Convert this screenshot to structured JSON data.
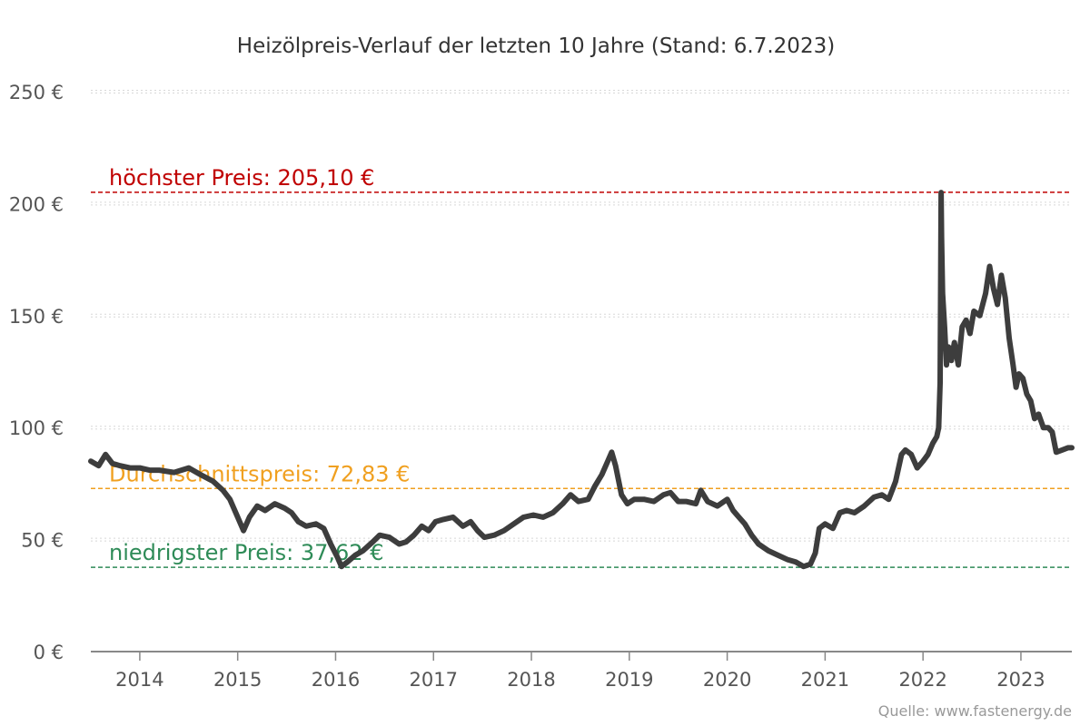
{
  "chart_data": {
    "type": "line",
    "title": "Heizölpreis-Verlauf der letzten 10 Jahre (Stand: 6.7.2023)",
    "credit": "Quelle: www.fastenergy.de",
    "ylim": [
      0,
      250
    ],
    "xlim": [
      2013.5,
      2023.52
    ],
    "y_ticks": [
      {
        "value": 0,
        "label": "0 €"
      },
      {
        "value": 50,
        "label": "50 €"
      },
      {
        "value": 100,
        "label": "100 €"
      },
      {
        "value": 150,
        "label": "150 €"
      },
      {
        "value": 200,
        "label": "200 €"
      },
      {
        "value": 250,
        "label": "250 €"
      }
    ],
    "x_ticks": [
      {
        "value": 2014,
        "label": "2014"
      },
      {
        "value": 2015,
        "label": "2015"
      },
      {
        "value": 2016,
        "label": "2016"
      },
      {
        "value": 2017,
        "label": "2017"
      },
      {
        "value": 2018,
        "label": "2018"
      },
      {
        "value": 2019,
        "label": "2019"
      },
      {
        "value": 2020,
        "label": "2020"
      },
      {
        "value": 2021,
        "label": "2021"
      },
      {
        "value": 2022,
        "label": "2022"
      },
      {
        "value": 2023,
        "label": "2023"
      }
    ],
    "reference_lines": [
      {
        "name": "max",
        "value": 205.1,
        "label": "höchster Preis: 205,10 €",
        "color": "#c00000"
      },
      {
        "name": "avg",
        "value": 72.83,
        "label": "Durchschnittspreis: 72,83 €",
        "color": "#f0a020"
      },
      {
        "name": "min",
        "value": 37.62,
        "label": "niedrigster Preis: 37,62 €",
        "color": "#2e8b57"
      }
    ],
    "series": [
      {
        "name": "Heizölpreis",
        "color": "#3d3d3d",
        "points": [
          [
            2013.5,
            85
          ],
          [
            2013.58,
            83
          ],
          [
            2013.65,
            88
          ],
          [
            2013.72,
            84
          ],
          [
            2013.8,
            83
          ],
          [
            2013.9,
            82
          ],
          [
            2014.0,
            82
          ],
          [
            2014.1,
            81
          ],
          [
            2014.2,
            81
          ],
          [
            2014.35,
            80
          ],
          [
            2014.5,
            82
          ],
          [
            2014.62,
            79
          ],
          [
            2014.75,
            76
          ],
          [
            2014.85,
            72
          ],
          [
            2014.92,
            68
          ],
          [
            2015.0,
            60
          ],
          [
            2015.06,
            54
          ],
          [
            2015.12,
            60
          ],
          [
            2015.2,
            65
          ],
          [
            2015.28,
            63
          ],
          [
            2015.38,
            66
          ],
          [
            2015.48,
            64
          ],
          [
            2015.55,
            62
          ],
          [
            2015.62,
            58
          ],
          [
            2015.7,
            56
          ],
          [
            2015.8,
            57
          ],
          [
            2015.88,
            55
          ],
          [
            2015.95,
            48
          ],
          [
            2016.02,
            42
          ],
          [
            2016.06,
            38
          ],
          [
            2016.12,
            40
          ],
          [
            2016.2,
            43
          ],
          [
            2016.28,
            45
          ],
          [
            2016.38,
            49
          ],
          [
            2016.45,
            52
          ],
          [
            2016.55,
            51
          ],
          [
            2016.65,
            48
          ],
          [
            2016.72,
            49
          ],
          [
            2016.8,
            52
          ],
          [
            2016.88,
            56
          ],
          [
            2016.95,
            54
          ],
          [
            2017.02,
            58
          ],
          [
            2017.1,
            59
          ],
          [
            2017.2,
            60
          ],
          [
            2017.3,
            56
          ],
          [
            2017.38,
            58
          ],
          [
            2017.45,
            54
          ],
          [
            2017.52,
            51
          ],
          [
            2017.62,
            52
          ],
          [
            2017.72,
            54
          ],
          [
            2017.82,
            57
          ],
          [
            2017.92,
            60
          ],
          [
            2018.02,
            61
          ],
          [
            2018.12,
            60
          ],
          [
            2018.22,
            62
          ],
          [
            2018.32,
            66
          ],
          [
            2018.4,
            70
          ],
          [
            2018.48,
            67
          ],
          [
            2018.58,
            68
          ],
          [
            2018.65,
            74
          ],
          [
            2018.72,
            79
          ],
          [
            2018.78,
            85
          ],
          [
            2018.82,
            89
          ],
          [
            2018.86,
            83
          ],
          [
            2018.92,
            70
          ],
          [
            2018.98,
            66
          ],
          [
            2019.05,
            68
          ],
          [
            2019.15,
            68
          ],
          [
            2019.25,
            67
          ],
          [
            2019.35,
            70
          ],
          [
            2019.42,
            71
          ],
          [
            2019.5,
            67
          ],
          [
            2019.58,
            67
          ],
          [
            2019.68,
            66
          ],
          [
            2019.73,
            72
          ],
          [
            2019.8,
            67
          ],
          [
            2019.9,
            65
          ],
          [
            2020.0,
            68
          ],
          [
            2020.06,
            63
          ],
          [
            2020.12,
            60
          ],
          [
            2020.18,
            57
          ],
          [
            2020.25,
            52
          ],
          [
            2020.32,
            48
          ],
          [
            2020.42,
            45
          ],
          [
            2020.52,
            43
          ],
          [
            2020.62,
            41
          ],
          [
            2020.7,
            40
          ],
          [
            2020.78,
            38
          ],
          [
            2020.85,
            39
          ],
          [
            2020.9,
            44
          ],
          [
            2020.94,
            55
          ],
          [
            2021.0,
            57
          ],
          [
            2021.08,
            55
          ],
          [
            2021.15,
            62
          ],
          [
            2021.22,
            63
          ],
          [
            2021.3,
            62
          ],
          [
            2021.4,
            65
          ],
          [
            2021.5,
            69
          ],
          [
            2021.58,
            70
          ],
          [
            2021.65,
            68
          ],
          [
            2021.72,
            76
          ],
          [
            2021.78,
            88
          ],
          [
            2021.82,
            90
          ],
          [
            2021.88,
            88
          ],
          [
            2021.94,
            82
          ],
          [
            2022.0,
            85
          ],
          [
            2022.05,
            88
          ],
          [
            2022.1,
            93
          ],
          [
            2022.14,
            96
          ],
          [
            2022.16,
            100
          ],
          [
            2022.175,
            120
          ],
          [
            2022.18,
            165
          ],
          [
            2022.185,
            205
          ],
          [
            2022.19,
            185
          ],
          [
            2022.2,
            160
          ],
          [
            2022.22,
            145
          ],
          [
            2022.24,
            128
          ],
          [
            2022.26,
            136
          ],
          [
            2022.29,
            130
          ],
          [
            2022.32,
            138
          ],
          [
            2022.36,
            128
          ],
          [
            2022.4,
            145
          ],
          [
            2022.44,
            148
          ],
          [
            2022.48,
            142
          ],
          [
            2022.52,
            152
          ],
          [
            2022.58,
            150
          ],
          [
            2022.64,
            160
          ],
          [
            2022.68,
            172
          ],
          [
            2022.72,
            162
          ],
          [
            2022.76,
            155
          ],
          [
            2022.8,
            168
          ],
          [
            2022.84,
            158
          ],
          [
            2022.88,
            140
          ],
          [
            2022.92,
            128
          ],
          [
            2022.95,
            118
          ],
          [
            2022.98,
            124
          ],
          [
            2023.02,
            122
          ],
          [
            2023.06,
            115
          ],
          [
            2023.1,
            112
          ],
          [
            2023.14,
            104
          ],
          [
            2023.18,
            106
          ],
          [
            2023.23,
            100
          ],
          [
            2023.28,
            100
          ],
          [
            2023.32,
            98
          ],
          [
            2023.36,
            89
          ],
          [
            2023.42,
            90
          ],
          [
            2023.48,
            91
          ],
          [
            2023.52,
            91
          ]
        ]
      }
    ]
  }
}
